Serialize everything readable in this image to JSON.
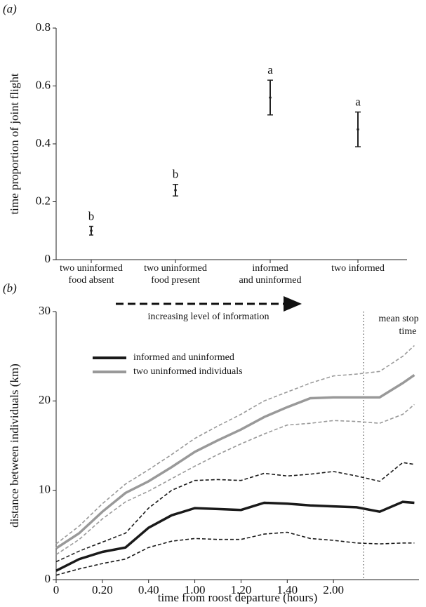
{
  "chart_data": [
    {
      "type": "errorbar",
      "panel": "(a)",
      "y_label": "time proportion of joint flight",
      "categories": [
        [
          "two uninformed",
          "food absent"
        ],
        [
          "two uninformed",
          "food present"
        ],
        [
          "informed",
          "and uninformed"
        ],
        [
          "two informed"
        ]
      ],
      "values": [
        0.1,
        0.24,
        0.56,
        0.45
      ],
      "errors": [
        0.015,
        0.02,
        0.06,
        0.06
      ],
      "annotations": [
        "b",
        "b",
        "a",
        "a"
      ],
      "color": "#222222",
      "ylim": [
        0,
        0.8
      ],
      "yticks": [
        0,
        0.2,
        0.4,
        0.6,
        0.8
      ],
      "arrow_label": "increasing level of information"
    },
    {
      "type": "line",
      "panel": "(b)",
      "x_label": "time from roost departure (hours)",
      "y_label": "distance between individuals (km)",
      "x": [
        0,
        10,
        20,
        30,
        40,
        50,
        60,
        70,
        80,
        90,
        100,
        110,
        120,
        130,
        140,
        150,
        155
      ],
      "series": [
        {
          "name": "informed and uninformed",
          "color": "#1a1a1a",
          "values": [
            1.0,
            2.3,
            3.1,
            3.6,
            5.8,
            7.2,
            8.0,
            7.9,
            7.8,
            8.6,
            8.5,
            8.3,
            8.2,
            8.1,
            7.6,
            8.7,
            8.6
          ],
          "upper": [
            2,
            3.2,
            4.2,
            5.2,
            8,
            10,
            11.1,
            11.2,
            11.1,
            11.9,
            11.6,
            11.8,
            12.1,
            11.6,
            11,
            13.1,
            12.9
          ],
          "lower": [
            0.5,
            1.2,
            1.8,
            2.3,
            3.6,
            4.3,
            4.6,
            4.5,
            4.5,
            5.1,
            5.3,
            4.6,
            4.4,
            4.1,
            4.0,
            4.1,
            4.1
          ]
        },
        {
          "name": "two uninformed individuals",
          "color": "#999999",
          "values": [
            3.5,
            5.2,
            7.6,
            9.7,
            11,
            12.6,
            14.3,
            15.6,
            16.8,
            18.2,
            19.3,
            20.3,
            20.4,
            20.4,
            20.4,
            22,
            22.9
          ],
          "upper": [
            4,
            6,
            8.5,
            10.7,
            12.3,
            14,
            15.8,
            17.2,
            18.5,
            20,
            21,
            22,
            22.8,
            23,
            23.3,
            25,
            26.2
          ],
          "lower": [
            2.8,
            4.5,
            6.8,
            8.7,
            9.9,
            11.3,
            12.7,
            14,
            15.2,
            16.3,
            17.3,
            17.5,
            17.8,
            17.7,
            17.5,
            18.5,
            19.6
          ]
        }
      ],
      "vline": {
        "x": 133,
        "label": [
          "mean stop",
          "time"
        ]
      },
      "xlim": [
        0,
        157
      ],
      "ylim": [
        0,
        30
      ],
      "xticks": [
        0,
        {
          "value": 20,
          "label": "0.20"
        },
        {
          "value": 40,
          "label": "0.40"
        },
        {
          "value": 60,
          "label": "1.00"
        },
        {
          "value": 80,
          "label": "1.20"
        },
        {
          "value": 100,
          "label": "1.40"
        },
        {
          "value": 120,
          "label": "2.00"
        }
      ],
      "yticks": [
        0,
        10,
        20,
        30
      ]
    }
  ]
}
